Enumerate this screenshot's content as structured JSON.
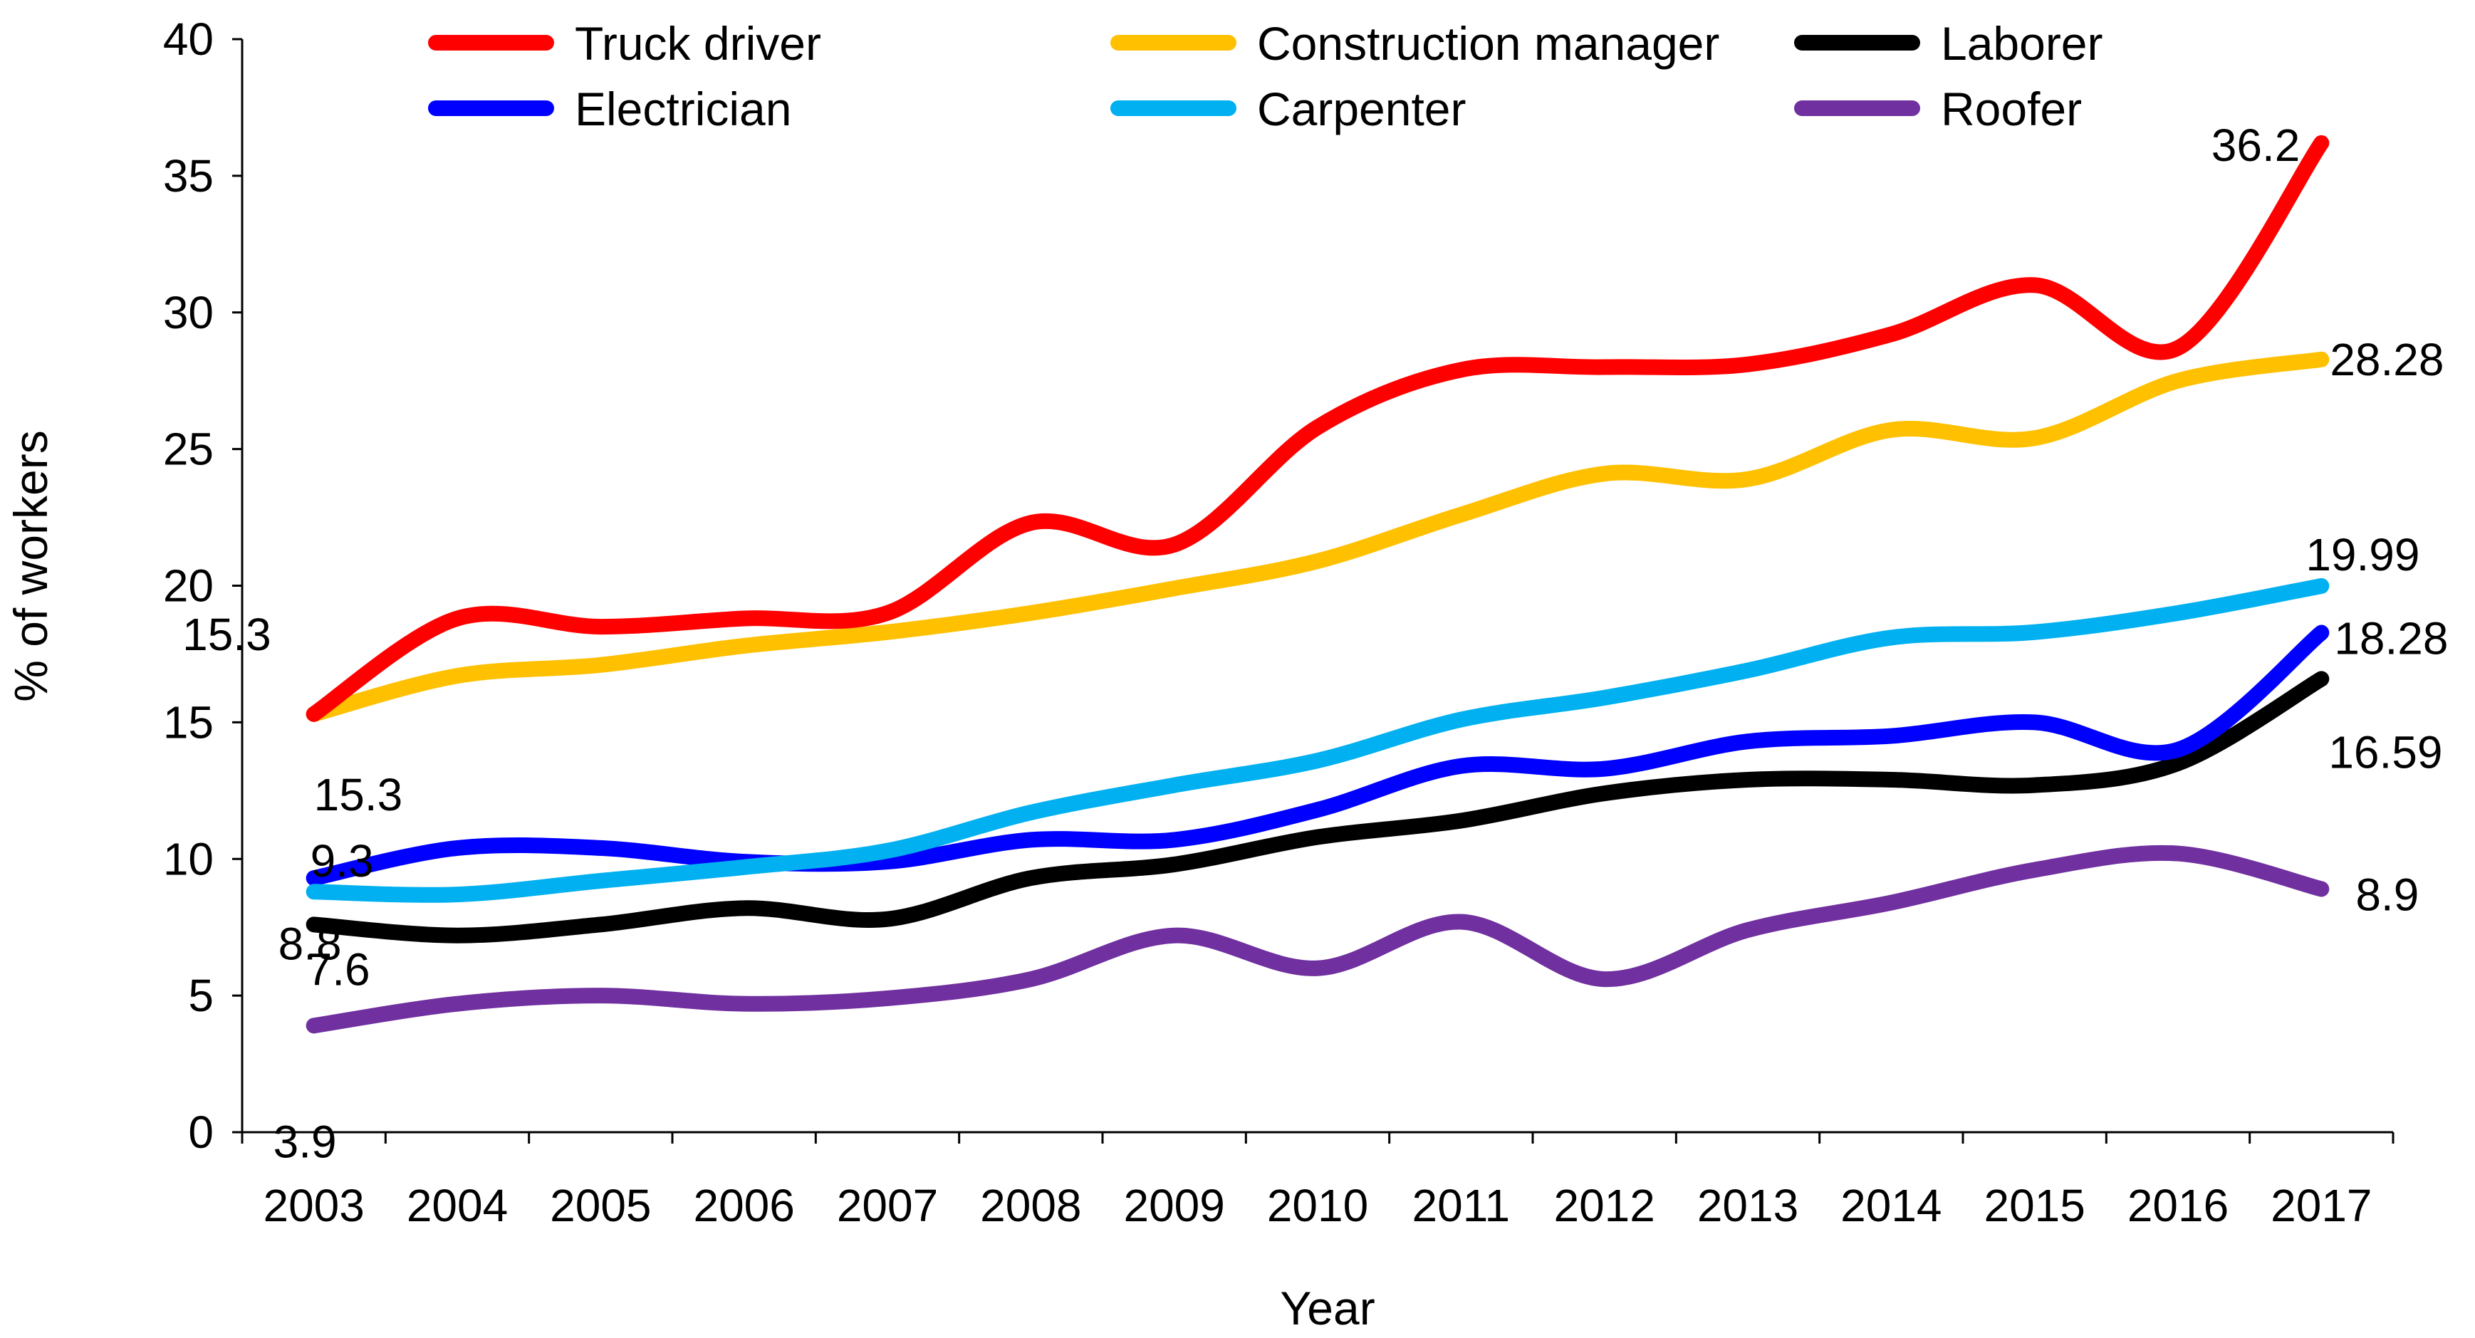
{
  "chart_data": {
    "type": "line",
    "title": "",
    "xlabel": "Year",
    "ylabel": "% of workers",
    "ylim": [
      0,
      40
    ],
    "yticks": [
      0,
      5,
      10,
      15,
      20,
      25,
      30,
      35,
      40
    ],
    "categories": [
      "2003",
      "2004",
      "2005",
      "2006",
      "2007",
      "2008",
      "2009",
      "2010",
      "2011",
      "2012",
      "2013",
      "2014",
      "2015",
      "2016",
      "2017"
    ],
    "legend_position": "top",
    "series": [
      {
        "name": "Truck driver",
        "color": "#ff0000",
        "values": [
          15.3,
          18.8,
          18.5,
          18.8,
          19.0,
          22.3,
          21.5,
          25.8,
          27.9,
          28.0,
          28.1,
          29.2,
          31.0,
          28.7,
          36.2
        ]
      },
      {
        "name": "Construction manager",
        "color": "#ffc000",
        "values": [
          15.3,
          16.7,
          17.1,
          17.8,
          18.3,
          19.0,
          19.9,
          20.9,
          22.6,
          24.1,
          23.9,
          25.7,
          25.4,
          27.5,
          28.28
        ]
      },
      {
        "name": "Laborer",
        "color": "#000000",
        "values": [
          7.6,
          7.2,
          7.6,
          8.2,
          7.8,
          9.3,
          9.8,
          10.8,
          11.4,
          12.4,
          12.9,
          12.9,
          12.7,
          13.5,
          16.59
        ]
      },
      {
        "name": "Electrician",
        "color": "#0000ff",
        "values": [
          9.3,
          10.4,
          10.4,
          9.9,
          9.9,
          10.7,
          10.7,
          11.8,
          13.4,
          13.3,
          14.3,
          14.5,
          15.0,
          14.0,
          18.28
        ]
      },
      {
        "name": "Carpenter",
        "color": "#00b0f0",
        "values": [
          8.8,
          8.7,
          9.2,
          9.7,
          10.3,
          11.7,
          12.7,
          13.6,
          15.1,
          15.9,
          16.9,
          18.1,
          18.3,
          19.0,
          19.99
        ]
      },
      {
        "name": "Roofer",
        "color": "#7030a0",
        "values": [
          3.9,
          4.7,
          5.0,
          4.7,
          4.9,
          5.6,
          7.2,
          6.0,
          7.7,
          5.6,
          7.4,
          8.4,
          9.6,
          10.2,
          8.9
        ]
      }
    ],
    "data_labels": [
      {
        "text": "15.3",
        "series": "Truck driver",
        "index": 0
      },
      {
        "text": "15.3",
        "series": "Construction manager",
        "index": 0
      },
      {
        "text": "9.3",
        "series": "Electrician",
        "index": 0
      },
      {
        "text": "8.8",
        "series": "Carpenter",
        "index": 0
      },
      {
        "text": "7.6",
        "series": "Laborer",
        "index": 0
      },
      {
        "text": "3.9",
        "series": "Roofer",
        "index": 0
      },
      {
        "text": "36.2",
        "series": "Truck driver",
        "index": 14
      },
      {
        "text": "28.28",
        "series": "Construction manager",
        "index": 14
      },
      {
        "text": "19.99",
        "series": "Carpenter",
        "index": 14
      },
      {
        "text": "18.28",
        "series": "Electrician",
        "index": 14
      },
      {
        "text": "16.59",
        "series": "Laborer",
        "index": 14
      },
      {
        "text": "8.9",
        "series": "Roofer",
        "index": 14
      }
    ]
  }
}
